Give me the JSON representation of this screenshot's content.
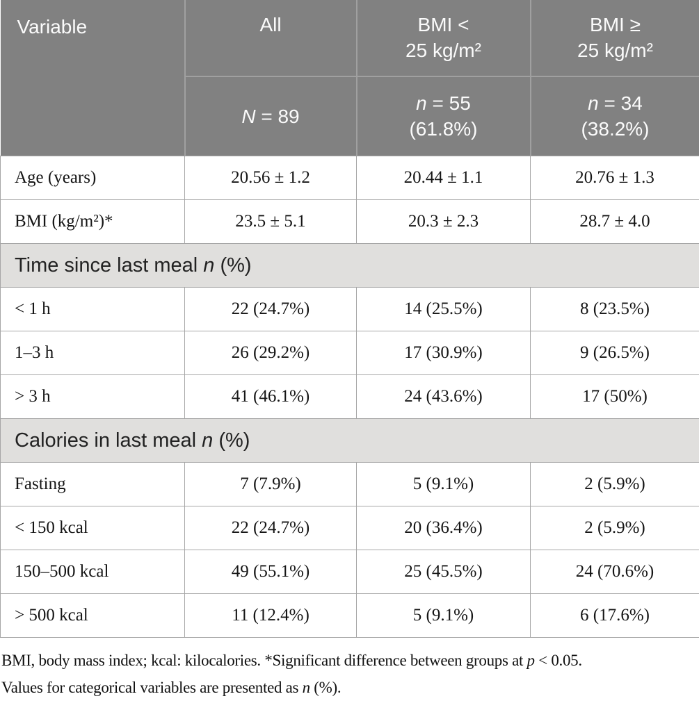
{
  "colors": {
    "header_bg": "#818181",
    "header_divider": "#a0a0a0",
    "header_text": "#fbfbfb",
    "section_bg": "#e0dfdd",
    "row_border": "#a6a6a6",
    "body_text": "#151515"
  },
  "table": {
    "header": {
      "variable_label": "Variable",
      "groups": [
        {
          "title_lines": [
            [
              {
                "t": "All"
              }
            ]
          ],
          "sub_lines": [
            [
              {
                "t": "N",
                "i": true
              },
              {
                "t": " = 89"
              }
            ]
          ]
        },
        {
          "title_lines": [
            [
              {
                "t": "BMI <"
              }
            ],
            [
              {
                "t": "25 kg/m²"
              }
            ]
          ],
          "sub_lines": [
            [
              {
                "t": "n",
                "i": true
              },
              {
                "t": " = 55"
              }
            ],
            [
              {
                "t": "(61.8%)"
              }
            ]
          ]
        },
        {
          "title_lines": [
            [
              {
                "t": "BMI ≥"
              }
            ],
            [
              {
                "t": "25 kg/m²"
              }
            ]
          ],
          "sub_lines": [
            [
              {
                "t": "n",
                "i": true
              },
              {
                "t": " = 34"
              }
            ],
            [
              {
                "t": "(38.2%)"
              }
            ]
          ]
        }
      ]
    },
    "rows": [
      {
        "type": "data",
        "label": "Age (years)",
        "values": [
          "20.56 ± 1.2",
          "20.44 ± 1.1",
          "20.76 ± 1.3"
        ]
      },
      {
        "type": "data",
        "label": "BMI (kg/m²)*",
        "values": [
          "23.5 ± 5.1",
          "20.3 ± 2.3",
          "28.7 ± 4.0"
        ]
      },
      {
        "type": "section",
        "label_parts": [
          {
            "t": "Time since last meal "
          },
          {
            "t": "n",
            "i": true
          },
          {
            "t": " (%)"
          }
        ]
      },
      {
        "type": "data",
        "label": "< 1 h",
        "values": [
          "22 (24.7%)",
          "14 (25.5%)",
          "8 (23.5%)"
        ]
      },
      {
        "type": "data",
        "label": "1–3 h",
        "values": [
          "26 (29.2%)",
          "17 (30.9%)",
          "9 (26.5%)"
        ]
      },
      {
        "type": "data",
        "label": "> 3 h",
        "values": [
          "41 (46.1%)",
          "24 (43.6%)",
          "17 (50%)"
        ]
      },
      {
        "type": "section",
        "label_parts": [
          {
            "t": "Calories in last meal "
          },
          {
            "t": "n",
            "i": true
          },
          {
            "t": " (%)"
          }
        ]
      },
      {
        "type": "data",
        "label": "Fasting",
        "values": [
          "7 (7.9%)",
          "5 (9.1%)",
          "2 (5.9%)"
        ]
      },
      {
        "type": "data",
        "label": "< 150 kcal",
        "values": [
          "22 (24.7%)",
          "20 (36.4%)",
          "2 (5.9%)"
        ]
      },
      {
        "type": "data",
        "label": "150–500 kcal",
        "values": [
          "49 (55.1%)",
          "25 (45.5%)",
          "24 (70.6%)"
        ]
      },
      {
        "type": "data",
        "label": "> 500 kcal",
        "values": [
          "11 (12.4%)",
          "5 (9.1%)",
          "6 (17.6%)"
        ]
      }
    ]
  },
  "footnote_lines": [
    [
      {
        "t": "BMI, body mass index; kcal: kilocalories. *Significant difference between groups at "
      },
      {
        "t": "p",
        "i": true
      },
      {
        "t": " < 0.05."
      }
    ],
    [
      {
        "t": "Values for categorical variables are presented as "
      },
      {
        "t": "n",
        "i": true
      },
      {
        "t": " (%)."
      }
    ]
  ]
}
